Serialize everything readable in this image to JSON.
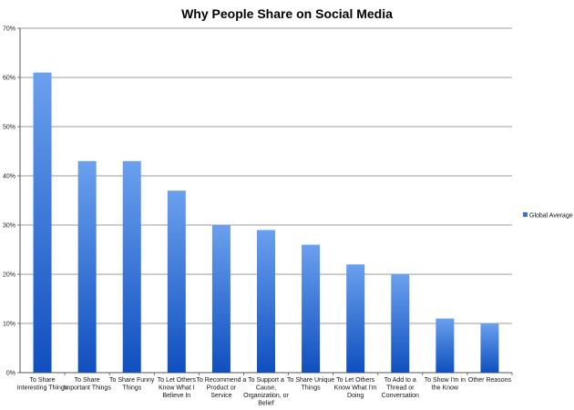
{
  "chart_data": {
    "type": "bar",
    "title": "Why People Share on Social Media",
    "xlabel": "",
    "ylabel": "",
    "ylim": [
      0,
      70
    ],
    "y_ticks": [
      "0%",
      "10%",
      "20%",
      "30%",
      "40%",
      "50%",
      "60%",
      "70%"
    ],
    "y_tick_values": [
      0,
      10,
      20,
      30,
      40,
      50,
      60,
      70
    ],
    "grid": true,
    "legend_position": "right",
    "categories": [
      [
        "To Share",
        "Interesting Things"
      ],
      [
        "To Share",
        "Important Things"
      ],
      [
        "To Share Funny",
        "Things"
      ],
      [
        "To Let Others",
        "Know What I",
        "Believe In"
      ],
      [
        "To Recommend a",
        "Product or",
        "Service"
      ],
      [
        "To Support a",
        "Cause,",
        "Organization, or",
        "Belief"
      ],
      [
        "To Share Unique",
        "Things"
      ],
      [
        "To Let Others",
        "Know What I'm",
        "Doing"
      ],
      [
        "To Add to a",
        "Thread or",
        "Conversation"
      ],
      [
        "To Show I'm in",
        "the Know"
      ],
      [
        "Other Reasons"
      ]
    ],
    "series": [
      {
        "name": "Global Average",
        "values": [
          61,
          43,
          43,
          37,
          30,
          29,
          26,
          22,
          20,
          11,
          10
        ],
        "color": "#3a72d8"
      }
    ]
  }
}
